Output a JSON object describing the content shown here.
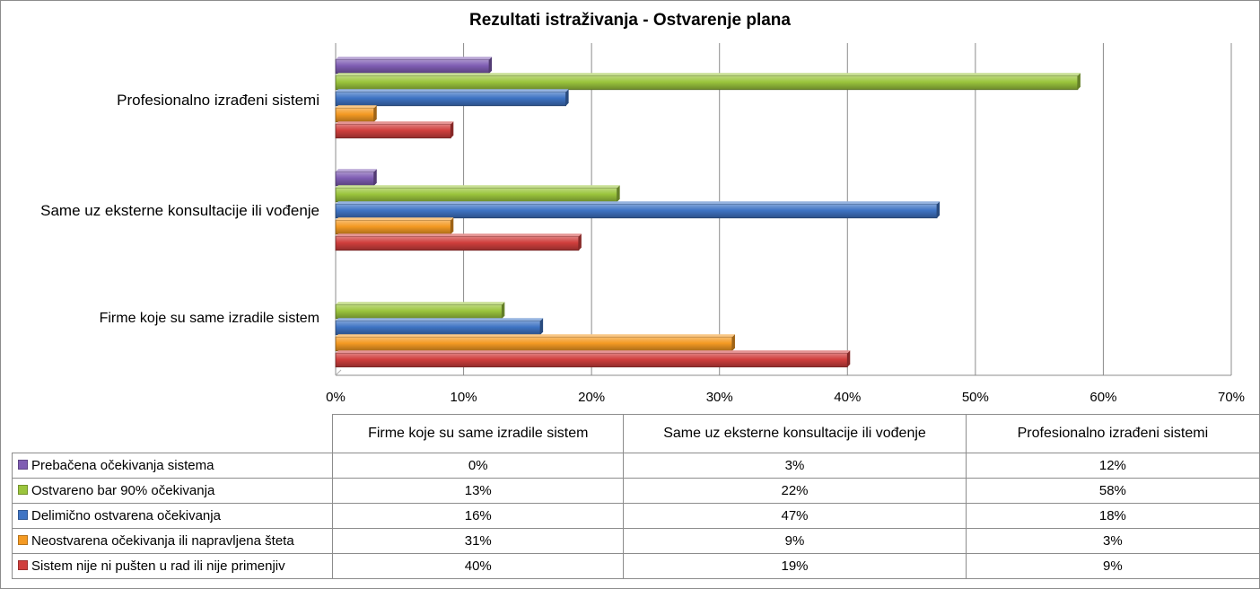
{
  "chart_data": {
    "type": "bar",
    "orientation": "horizontal",
    "title": "Rezultati istraživanja - Ostvarenje plana",
    "categories": [
      "Firme koje su same izradile sistem",
      "Same uz eksterne konsultacije ili vođenje",
      "Profesionalno izrađeni sistemi"
    ],
    "table_headers": [
      "Firme koje su same izradile sistem",
      "Same uz eksterne konsultacije ili vođenje",
      "Profesionalno izrađeni sistemi"
    ],
    "series": [
      {
        "name": "Prebačena očekivanja sistema",
        "color": "#7f5db3",
        "values": [
          0,
          3,
          12
        ],
        "labels": [
          "0%",
          "3%",
          "12%"
        ]
      },
      {
        "name": "Ostvareno bar 90% očekivanja",
        "color": "#9bc53d",
        "values": [
          13,
          22,
          58
        ],
        "labels": [
          "13%",
          "22%",
          "58%"
        ]
      },
      {
        "name": "Delimično ostvarena očekivanja",
        "color": "#3f74c4",
        "values": [
          16,
          47,
          18
        ],
        "labels": [
          "16%",
          "47%",
          "18%"
        ]
      },
      {
        "name": "Neostvarena očekivanja ili napravljena šteta",
        "color": "#f49a23",
        "values": [
          31,
          9,
          3
        ],
        "labels": [
          "31%",
          "9%",
          "3%"
        ]
      },
      {
        "name": "Sistem nije ni pušten u rad ili nije primenjiv",
        "color": "#d03f3d",
        "values": [
          40,
          19,
          9
        ],
        "labels": [
          "40%",
          "19%",
          "9%"
        ]
      }
    ],
    "xlim": [
      0,
      70
    ],
    "xticks": [
      "0%",
      "10%",
      "20%",
      "30%",
      "40%",
      "50%",
      "60%",
      "70%"
    ],
    "grid": true,
    "legend_placement": "data-table"
  }
}
